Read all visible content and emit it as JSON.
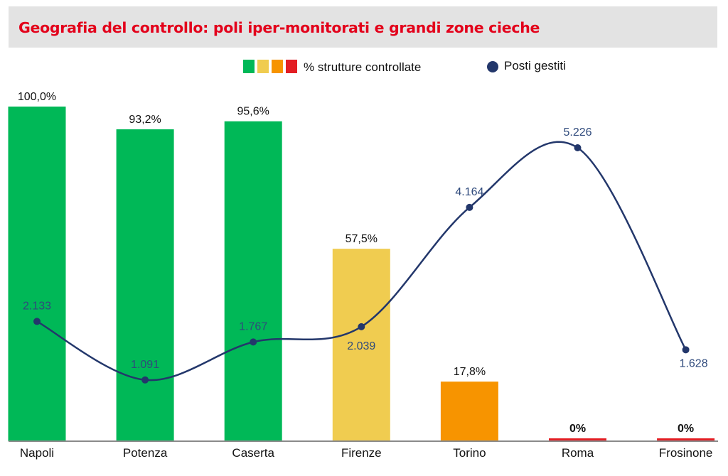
{
  "title": "Geografia del controllo: poli iper-monitorati e grandi zone cieche",
  "legend": {
    "bars_label": "% strutture controllate",
    "line_label": "Posti gestiti",
    "bar_swatch_colors": [
      "#00b857",
      "#f0cc50",
      "#f79400",
      "#e31e24"
    ],
    "line_color": "#23376b"
  },
  "chart_data": {
    "type": "bar",
    "categories": [
      "Napoli",
      "Potenza",
      "Caserta",
      "Firenze",
      "Torino",
      "Roma",
      "Frosinone"
    ],
    "series": [
      {
        "name": "% strutture controllate",
        "type": "bar",
        "values": [
          100.0,
          93.2,
          95.6,
          57.5,
          17.8,
          0,
          0
        ],
        "labels": [
          "100,0%",
          "93,2%",
          "95,6%",
          "57,5%",
          "17,8%",
          "0%",
          "0%"
        ],
        "colors": [
          "#00b857",
          "#00b857",
          "#00b857",
          "#f0cc50",
          "#f79400",
          "#e31e24",
          "#e31e24"
        ]
      },
      {
        "name": "Posti gestiti",
        "type": "line",
        "values": [
          2133,
          1091,
          1767,
          2039,
          4164,
          5226,
          1628
        ],
        "labels": [
          "2.133",
          "1.091",
          "1.767",
          "2.039",
          "4.164",
          "5.226",
          "1.628"
        ],
        "color": "#23376b"
      }
    ],
    "ylim_bars": [
      0,
      100
    ],
    "ylim_line": [
      0,
      7000
    ],
    "grid": false,
    "legend_position": "top"
  }
}
